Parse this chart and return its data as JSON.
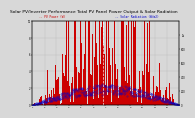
{
  "title": "Solar PV/Inverter Performance Total PV Panel Power Output & Solar Radiation",
  "title_fontsize": 3.2,
  "bg_color": "#d8d8d8",
  "plot_bg_color": "#d8d8d8",
  "grid_color": "#bbbbbb",
  "bar_color": "#cc0000",
  "dot_color": "#0000cc",
  "ylabel_left": "kW",
  "ylabel_right": "W/m2",
  "n_bars": 365,
  "peak_kw": 10.0,
  "peak_radiation": 300,
  "ylim_left": [
    0,
    10.0
  ],
  "ylim_right": [
    0,
    1200
  ],
  "legend_left": "-- PV Power (W)",
  "legend_right": "-- Solar Radiation (W/m2)",
  "legend_color_left": "#cc0000",
  "legend_color_right": "#0000cc"
}
